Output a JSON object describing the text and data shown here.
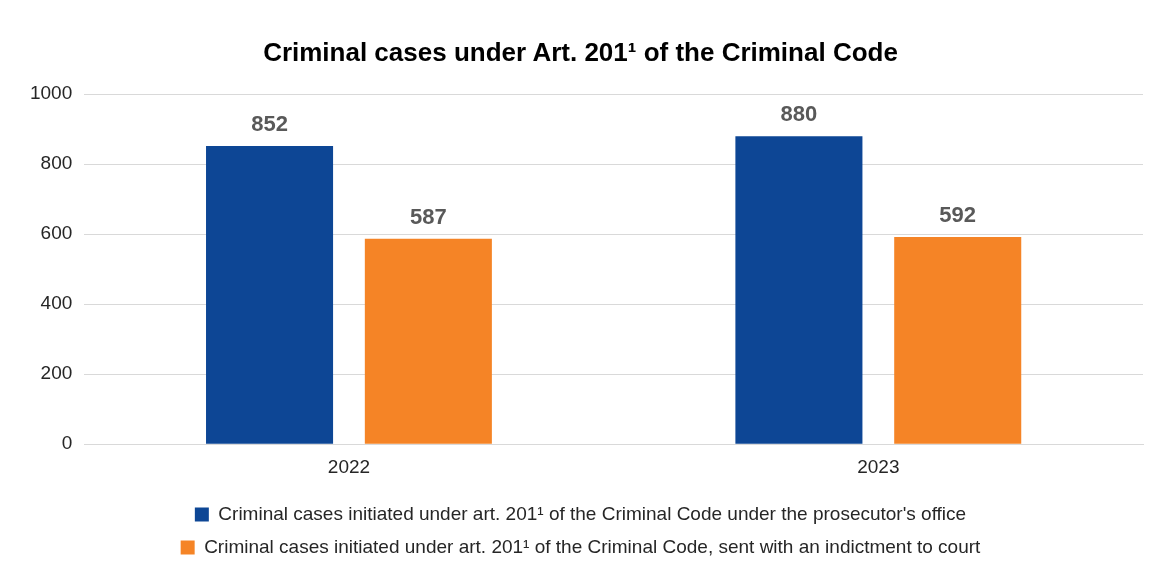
{
  "chart_data": {
    "type": "bar",
    "title": "Criminal cases under Art. 201¹ of the Criminal Code",
    "categories": [
      "2022",
      "2023"
    ],
    "series": [
      {
        "name": "Criminal cases initiated under art. 201¹ of the Criminal Code under the prosecutor's office",
        "color": "#0d4695",
        "values": [
          852,
          880
        ]
      },
      {
        "name": "Criminal cases initiated under art. 201¹ of the Criminal Code, sent with an indictment to court",
        "color": "#f58426",
        "values": [
          587,
          592
        ]
      }
    ],
    "ylim": [
      0,
      1000
    ],
    "yticks": [
      0,
      200,
      400,
      600,
      800,
      1000
    ],
    "grid": "y",
    "legend": "bottom",
    "data_labels": true
  }
}
